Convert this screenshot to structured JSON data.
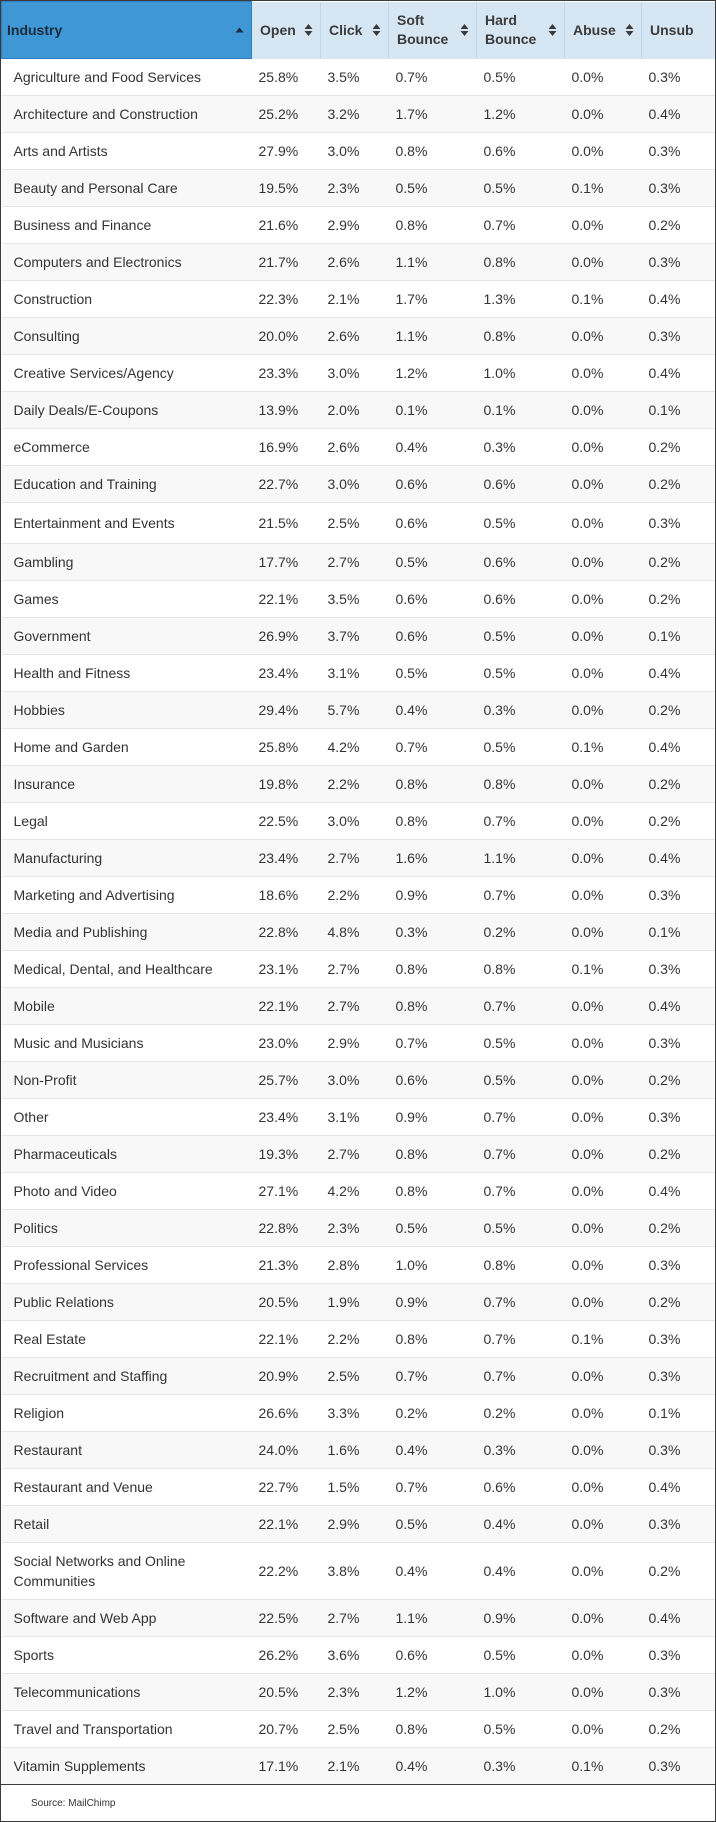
{
  "table": {
    "columns": [
      {
        "label": "Industry",
        "key": "industry",
        "active": true
      },
      {
        "label": "Open",
        "key": "open",
        "active": false
      },
      {
        "label": "Click",
        "key": "click",
        "active": false
      },
      {
        "label": "Soft Bounce",
        "key": "soft",
        "active": false
      },
      {
        "label": "Hard Bounce",
        "key": "hard",
        "active": false
      },
      {
        "label": "Abuse",
        "key": "abuse",
        "active": false
      },
      {
        "label": "Unsub",
        "key": "unsub",
        "active": false
      }
    ],
    "rows": [
      {
        "industry": "Agriculture and Food Services",
        "open": "25.8%",
        "click": "3.5%",
        "soft": "0.7%",
        "hard": "0.5%",
        "abuse": "0.0%",
        "unsub": "0.3%"
      },
      {
        "industry": "Architecture and Construction",
        "open": "25.2%",
        "click": "3.2%",
        "soft": "1.7%",
        "hard": "1.2%",
        "abuse": "0.0%",
        "unsub": "0.4%"
      },
      {
        "industry": "Arts and Artists",
        "open": "27.9%",
        "click": "3.0%",
        "soft": "0.8%",
        "hard": "0.6%",
        "abuse": "0.0%",
        "unsub": "0.3%"
      },
      {
        "industry": "Beauty and Personal Care",
        "open": "19.5%",
        "click": "2.3%",
        "soft": "0.5%",
        "hard": "0.5%",
        "abuse": "0.1%",
        "unsub": "0.3%"
      },
      {
        "industry": "Business and Finance",
        "open": "21.6%",
        "click": "2.9%",
        "soft": "0.8%",
        "hard": "0.7%",
        "abuse": "0.0%",
        "unsub": "0.2%"
      },
      {
        "industry": "Computers and Electronics",
        "open": "21.7%",
        "click": "2.6%",
        "soft": "1.1%",
        "hard": "0.8%",
        "abuse": "0.0%",
        "unsub": "0.3%"
      },
      {
        "industry": "Construction",
        "open": "22.3%",
        "click": "2.1%",
        "soft": "1.7%",
        "hard": "1.3%",
        "abuse": "0.1%",
        "unsub": "0.4%"
      },
      {
        "industry": "Consulting",
        "open": "20.0%",
        "click": "2.6%",
        "soft": "1.1%",
        "hard": "0.8%",
        "abuse": "0.0%",
        "unsub": "0.3%"
      },
      {
        "industry": "Creative Services/Agency",
        "open": "23.3%",
        "click": "3.0%",
        "soft": "1.2%",
        "hard": "1.0%",
        "abuse": "0.0%",
        "unsub": "0.4%"
      },
      {
        "industry": "Daily Deals/E-Coupons",
        "open": "13.9%",
        "click": "2.0%",
        "soft": "0.1%",
        "hard": "0.1%",
        "abuse": "0.0%",
        "unsub": "0.1%"
      },
      {
        "industry": "eCommerce",
        "open": "16.9%",
        "click": "2.6%",
        "soft": "0.4%",
        "hard": "0.3%",
        "abuse": "0.0%",
        "unsub": "0.2%"
      },
      {
        "industry": "Education and Training",
        "open": "22.7%",
        "click": "3.0%",
        "soft": "0.6%",
        "hard": "0.6%",
        "abuse": "0.0%",
        "unsub": "0.2%"
      },
      {
        "industry": "Entertainment and Events",
        "open": "21.5%",
        "click": "2.5%",
        "soft": "0.6%",
        "hard": "0.5%",
        "abuse": "0.0%",
        "unsub": "0.3%"
      },
      {
        "industry": "Gambling",
        "open": "17.7%",
        "click": "2.7%",
        "soft": "0.5%",
        "hard": "0.6%",
        "abuse": "0.0%",
        "unsub": "0.2%"
      },
      {
        "industry": "Games",
        "open": "22.1%",
        "click": "3.5%",
        "soft": "0.6%",
        "hard": "0.6%",
        "abuse": "0.0%",
        "unsub": "0.2%"
      },
      {
        "industry": "Government",
        "open": "26.9%",
        "click": "3.7%",
        "soft": "0.6%",
        "hard": "0.5%",
        "abuse": "0.0%",
        "unsub": "0.1%"
      },
      {
        "industry": "Health and Fitness",
        "open": "23.4%",
        "click": "3.1%",
        "soft": "0.5%",
        "hard": "0.5%",
        "abuse": "0.0%",
        "unsub": "0.4%"
      },
      {
        "industry": "Hobbies",
        "open": "29.4%",
        "click": "5.7%",
        "soft": "0.4%",
        "hard": "0.3%",
        "abuse": "0.0%",
        "unsub": "0.2%"
      },
      {
        "industry": "Home and Garden",
        "open": "25.8%",
        "click": "4.2%",
        "soft": "0.7%",
        "hard": "0.5%",
        "abuse": "0.1%",
        "unsub": "0.4%"
      },
      {
        "industry": "Insurance",
        "open": "19.8%",
        "click": "2.2%",
        "soft": "0.8%",
        "hard": "0.8%",
        "abuse": "0.0%",
        "unsub": "0.2%"
      },
      {
        "industry": "Legal",
        "open": "22.5%",
        "click": "3.0%",
        "soft": "0.8%",
        "hard": "0.7%",
        "abuse": "0.0%",
        "unsub": "0.2%"
      },
      {
        "industry": "Manufacturing",
        "open": "23.4%",
        "click": "2.7%",
        "soft": "1.6%",
        "hard": "1.1%",
        "abuse": "0.0%",
        "unsub": "0.4%"
      },
      {
        "industry": "Marketing and Advertising",
        "open": "18.6%",
        "click": "2.2%",
        "soft": "0.9%",
        "hard": "0.7%",
        "abuse": "0.0%",
        "unsub": "0.3%"
      },
      {
        "industry": "Media and Publishing",
        "open": "22.8%",
        "click": "4.8%",
        "soft": "0.3%",
        "hard": "0.2%",
        "abuse": "0.0%",
        "unsub": "0.1%"
      },
      {
        "industry": "Medical, Dental, and Healthcare",
        "open": "23.1%",
        "click": "2.7%",
        "soft": "0.8%",
        "hard": "0.8%",
        "abuse": "0.1%",
        "unsub": "0.3%"
      },
      {
        "industry": "Mobile",
        "open": "22.1%",
        "click": "2.7%",
        "soft": "0.8%",
        "hard": "0.7%",
        "abuse": "0.0%",
        "unsub": "0.4%"
      },
      {
        "industry": "Music and Musicians",
        "open": "23.0%",
        "click": "2.9%",
        "soft": "0.7%",
        "hard": "0.5%",
        "abuse": "0.0%",
        "unsub": "0.3%"
      },
      {
        "industry": "Non-Profit",
        "open": "25.7%",
        "click": "3.0%",
        "soft": "0.6%",
        "hard": "0.5%",
        "abuse": "0.0%",
        "unsub": "0.2%"
      },
      {
        "industry": "Other",
        "open": "23.4%",
        "click": "3.1%",
        "soft": "0.9%",
        "hard": "0.7%",
        "abuse": "0.0%",
        "unsub": "0.3%"
      },
      {
        "industry": "Pharmaceuticals",
        "open": "19.3%",
        "click": "2.7%",
        "soft": "0.8%",
        "hard": "0.7%",
        "abuse": "0.0%",
        "unsub": "0.2%"
      },
      {
        "industry": "Photo and Video",
        "open": "27.1%",
        "click": "4.2%",
        "soft": "0.8%",
        "hard": "0.7%",
        "abuse": "0.0%",
        "unsub": "0.4%"
      },
      {
        "industry": "Politics",
        "open": "22.8%",
        "click": "2.3%",
        "soft": "0.5%",
        "hard": "0.5%",
        "abuse": "0.0%",
        "unsub": "0.2%"
      },
      {
        "industry": "Professional Services",
        "open": "21.3%",
        "click": "2.8%",
        "soft": "1.0%",
        "hard": "0.8%",
        "abuse": "0.0%",
        "unsub": "0.3%"
      },
      {
        "industry": "Public Relations",
        "open": "20.5%",
        "click": "1.9%",
        "soft": "0.9%",
        "hard": "0.7%",
        "abuse": "0.0%",
        "unsub": "0.2%"
      },
      {
        "industry": "Real Estate",
        "open": "22.1%",
        "click": "2.2%",
        "soft": "0.8%",
        "hard": "0.7%",
        "abuse": "0.1%",
        "unsub": "0.3%"
      },
      {
        "industry": "Recruitment and Staffing",
        "open": "20.9%",
        "click": "2.5%",
        "soft": "0.7%",
        "hard": "0.7%",
        "abuse": "0.0%",
        "unsub": "0.3%"
      },
      {
        "industry": "Religion",
        "open": "26.6%",
        "click": "3.3%",
        "soft": "0.2%",
        "hard": "0.2%",
        "abuse": "0.0%",
        "unsub": "0.1%"
      },
      {
        "industry": "Restaurant",
        "open": "24.0%",
        "click": "1.6%",
        "soft": "0.4%",
        "hard": "0.3%",
        "abuse": "0.0%",
        "unsub": "0.3%"
      },
      {
        "industry": "Restaurant and Venue",
        "open": "22.7%",
        "click": "1.5%",
        "soft": "0.7%",
        "hard": "0.6%",
        "abuse": "0.0%",
        "unsub": "0.4%"
      },
      {
        "industry": "Retail",
        "open": "22.1%",
        "click": "2.9%",
        "soft": "0.5%",
        "hard": "0.4%",
        "abuse": "0.0%",
        "unsub": "0.3%"
      },
      {
        "industry": "Social Networks and Online Communities",
        "open": "22.2%",
        "click": "3.8%",
        "soft": "0.4%",
        "hard": "0.4%",
        "abuse": "0.0%",
        "unsub": "0.2%"
      },
      {
        "industry": "Software and Web App",
        "open": "22.5%",
        "click": "2.7%",
        "soft": "1.1%",
        "hard": "0.9%",
        "abuse": "0.0%",
        "unsub": "0.4%"
      },
      {
        "industry": "Sports",
        "open": "26.2%",
        "click": "3.6%",
        "soft": "0.6%",
        "hard": "0.5%",
        "abuse": "0.0%",
        "unsub": "0.3%"
      },
      {
        "industry": "Telecommunications",
        "open": "20.5%",
        "click": "2.3%",
        "soft": "1.2%",
        "hard": "1.0%",
        "abuse": "0.0%",
        "unsub": "0.3%"
      },
      {
        "industry": "Travel and Transportation",
        "open": "20.7%",
        "click": "2.5%",
        "soft": "0.8%",
        "hard": "0.5%",
        "abuse": "0.0%",
        "unsub": "0.2%"
      },
      {
        "industry": "Vitamin Supplements",
        "open": "17.1%",
        "click": "2.1%",
        "soft": "0.4%",
        "hard": "0.3%",
        "abuse": "0.1%",
        "unsub": "0.3%"
      }
    ]
  },
  "icons": {
    "active_sort": "sort-ascending-icon",
    "inactive_sort": "sort-both-icon"
  },
  "colors": {
    "active_header": "#3f97d6",
    "header": "#d6e6f3",
    "row_alt": "#f8f8f8"
  },
  "footer": {
    "source": "Source: MailChimp"
  }
}
